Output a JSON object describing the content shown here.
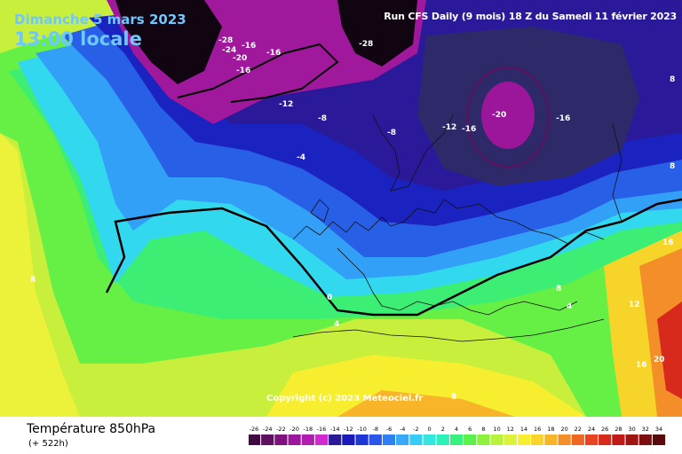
{
  "header": {
    "date": "Dimanche 5 mars 2023",
    "time": "13:00 locale",
    "run": "Run CFS Daily (9 mois) 18 Z du Samedi 11 février 2023"
  },
  "copyright": "Copyright (c) 2023 Meteociel.fr",
  "footer": {
    "variable": "Température 850hPa",
    "lead": "(+ 522h)"
  },
  "legend": {
    "ticks": [
      "-26",
      "-24",
      "-22",
      "-20",
      "-18",
      "-16",
      "-14",
      "-12",
      "-10",
      "-8",
      "-6",
      "-4",
      "-2",
      "0",
      "2",
      "4",
      "6",
      "8",
      "10",
      "12",
      "14",
      "16",
      "18",
      "20",
      "22",
      "24",
      "26",
      "28",
      "30",
      "32",
      "34"
    ],
    "colors": [
      "#3d0b3d",
      "#5e0f5e",
      "#7c127c",
      "#9b169b",
      "#b01eb0",
      "#d02ad0",
      "#2a1a99",
      "#1a1ab8",
      "#1f36d6",
      "#2a55e8",
      "#2f80f2",
      "#35aaf8",
      "#36ccf5",
      "#33e8e0",
      "#2cf2b8",
      "#38f27e",
      "#5af24a",
      "#8cf23a",
      "#b8f23a",
      "#dcf23a",
      "#f7ee30",
      "#f9d42a",
      "#f7b52a",
      "#f38e28",
      "#ee6824",
      "#e84420",
      "#d82a1c",
      "#c01a18",
      "#a01414",
      "#7d0f0f",
      "#5a0a0a"
    ]
  },
  "contour_labels": [
    "-28",
    "-24",
    "-20",
    "-16",
    "-16",
    "-16",
    "-12",
    "-8",
    "-4",
    "-8",
    "-12",
    "-16",
    "-20",
    "-16",
    "0",
    "4",
    "4",
    "8",
    "8",
    "8",
    "8",
    "8",
    "12",
    "16",
    "16",
    "20",
    "-28"
  ]
}
